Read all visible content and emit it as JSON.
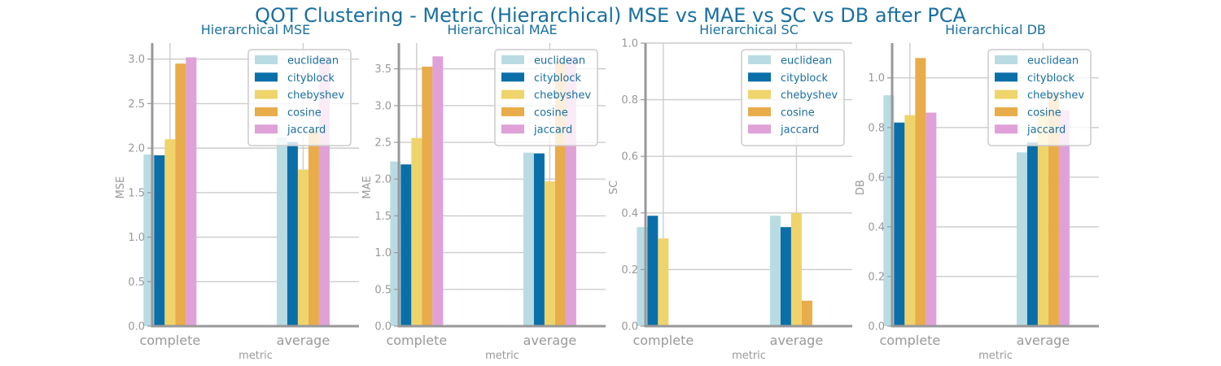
{
  "figure": {
    "title": "QOT Clustering - Metric (Hierarchical) MSE vs MAE vs SC vs DB after PCA",
    "title_color": "#1a6fa0"
  },
  "colors": {
    "series": [
      "#b9dce3",
      "#0a6fa8",
      "#efd46c",
      "#e8ac4a",
      "#dfa1d8"
    ],
    "axis": "#999999",
    "grid": "#cccccc",
    "text_accent": "#1a6fa0"
  },
  "chart_data": [
    {
      "type": "bar",
      "title": "Hierarchical MSE",
      "xlabel": "metric",
      "ylabel": "MSE",
      "categories": [
        "complete",
        "average"
      ],
      "ylim": [
        0,
        3.18
      ],
      "yticks": [
        0.0,
        0.5,
        1.0,
        1.5,
        2.0,
        2.5,
        3.0
      ],
      "yticklabels": [
        "0.0",
        "0.5",
        "1.0",
        "1.5",
        "2.0",
        "2.5",
        "3.0"
      ],
      "grid": true,
      "legend_position": "top-right",
      "series": [
        {
          "name": "euclidean",
          "values": [
            1.93,
            2.12
          ]
        },
        {
          "name": "cityblock",
          "values": [
            1.92,
            2.07
          ]
        },
        {
          "name": "chebyshev",
          "values": [
            2.1,
            1.76
          ]
        },
        {
          "name": "cosine",
          "values": [
            2.95,
            2.2
          ]
        },
        {
          "name": "jaccard",
          "values": [
            3.02,
            3.02
          ]
        }
      ]
    },
    {
      "type": "bar",
      "title": "Hierarchical MAE",
      "xlabel": "metric",
      "ylabel": "MAE",
      "categories": [
        "complete",
        "average"
      ],
      "ylim": [
        0,
        3.85
      ],
      "yticks": [
        0.0,
        0.5,
        1.0,
        1.5,
        2.0,
        2.5,
        3.0,
        3.5
      ],
      "yticklabels": [
        "0.0",
        "0.5",
        "1.0",
        "1.5",
        "2.0",
        "2.5",
        "3.0",
        "3.5"
      ],
      "grid": true,
      "legend_position": "top-right",
      "series": [
        {
          "name": "euclidean",
          "values": [
            2.24,
            2.36
          ]
        },
        {
          "name": "cityblock",
          "values": [
            2.2,
            2.35
          ]
        },
        {
          "name": "chebyshev",
          "values": [
            2.56,
            1.97
          ]
        },
        {
          "name": "cosine",
          "values": [
            3.53,
            3.6
          ]
        },
        {
          "name": "jaccard",
          "values": [
            3.67,
            3.67
          ]
        }
      ]
    },
    {
      "type": "bar",
      "title": "Hierarchical SC",
      "xlabel": "metric",
      "ylabel": "SC",
      "categories": [
        "complete",
        "average"
      ],
      "ylim": [
        0,
        1.0
      ],
      "yticks": [
        0.0,
        0.2,
        0.4,
        0.6,
        0.8,
        1.0
      ],
      "yticklabels": [
        "0.0",
        "0.2",
        "0.4",
        "0.6",
        "0.8",
        "1.0"
      ],
      "grid": true,
      "legend_position": "top-right",
      "series": [
        {
          "name": "euclidean",
          "values": [
            0.35,
            0.39
          ]
        },
        {
          "name": "cityblock",
          "values": [
            0.39,
            0.35
          ]
        },
        {
          "name": "chebyshev",
          "values": [
            0.31,
            0.4
          ]
        },
        {
          "name": "cosine",
          "values": [
            null,
            0.09
          ]
        },
        {
          "name": "jaccard",
          "values": [
            null,
            null
          ]
        }
      ]
    },
    {
      "type": "bar",
      "title": "Hierarchical DB",
      "xlabel": "metric",
      "ylabel": "DB",
      "categories": [
        "complete",
        "average"
      ],
      "ylim": [
        0,
        1.14
      ],
      "yticks": [
        0.0,
        0.2,
        0.4,
        0.6,
        0.8,
        1.0
      ],
      "yticklabels": [
        "0.0",
        "0.2",
        "0.4",
        "0.6",
        "0.8",
        "1.0"
      ],
      "grid": true,
      "legend_position": "top-right",
      "series": [
        {
          "name": "euclidean",
          "values": [
            0.93,
            0.7
          ]
        },
        {
          "name": "cityblock",
          "values": [
            0.82,
            0.74
          ]
        },
        {
          "name": "chebyshev",
          "values": [
            0.85,
            0.87
          ]
        },
        {
          "name": "cosine",
          "values": [
            1.08,
            0.94
          ]
        },
        {
          "name": "jaccard",
          "values": [
            0.86,
            0.87
          ]
        }
      ]
    }
  ]
}
